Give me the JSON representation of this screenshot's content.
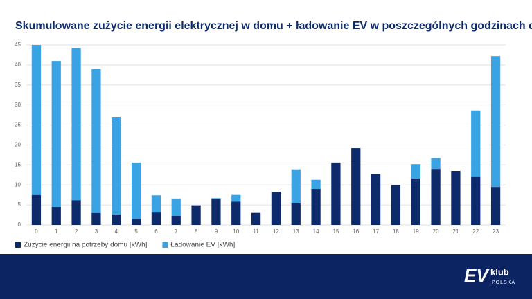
{
  "chart_data": {
    "type": "stacked_bar",
    "title": "Skumulowane zużycie energii elektrycznej w domu + ładowanie EV w poszczególnych godzinach doby",
    "categories": [
      "0",
      "1",
      "2",
      "3",
      "4",
      "5",
      "6",
      "7",
      "8",
      "9",
      "10",
      "11",
      "12",
      "13",
      "14",
      "15",
      "16",
      "17",
      "18",
      "19",
      "20",
      "21",
      "22",
      "23"
    ],
    "series": [
      {
        "name": "Zużycie energii na potrzeby domu [kWh]",
        "color": "#0d2a6b",
        "values": [
          7.5,
          4.5,
          6.2,
          3,
          2.6,
          1.5,
          3.1,
          2.3,
          4.9,
          6.4,
          5.8,
          3,
          8.3,
          5.4,
          9,
          15.6,
          19.2,
          12.8,
          10,
          11.6,
          14,
          13.5,
          12,
          9.5
        ]
      },
      {
        "name": "Ładowanie EV [kWh]",
        "color": "#3aa3e3",
        "values": [
          37.5,
          36.5,
          38,
          36,
          24.4,
          14.1,
          4.3,
          4.3,
          0,
          0.3,
          1.7,
          0,
          0,
          8.5,
          2.3,
          0,
          0,
          0,
          0,
          3.6,
          2.7,
          0,
          16.6,
          32.7
        ]
      }
    ],
    "ylim": [
      0,
      45
    ],
    "yticks": [
      0,
      5,
      10,
      15,
      20,
      25,
      30,
      35,
      40,
      45
    ],
    "grid": true
  },
  "footer": {
    "logo_main": "EV",
    "logo_brand": "klub",
    "logo_sub": "POLSKA"
  }
}
